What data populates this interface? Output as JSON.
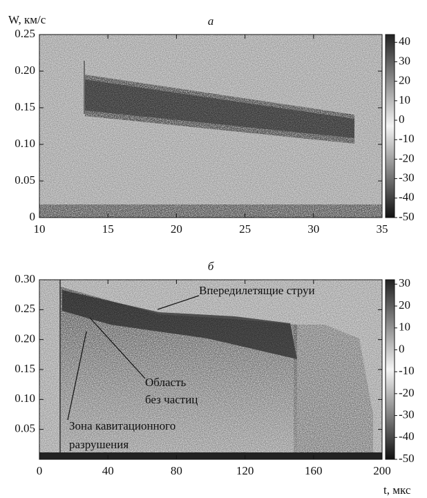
{
  "chart_data": [
    {
      "type": "spectrogram",
      "title": "а",
      "ylabel": "W, км/с",
      "xlim": [
        10,
        35
      ],
      "xticks": [
        10,
        15,
        20,
        25,
        30,
        35
      ],
      "ylim": [
        0,
        0.25
      ],
      "yticks": [
        0,
        0.05,
        {
          "value": 0.1,
          "label": "0.10"
        },
        0.15,
        {
          "value": 0.2,
          "label": "0.20"
        },
        0.25
      ],
      "colorbar": {
        "lim": [
          -50,
          44
        ],
        "ticks": [
          -50,
          -40,
          -30,
          -20,
          -10,
          0,
          10,
          20,
          30,
          40
        ]
      }
    },
    {
      "type": "spectrogram",
      "title": "б",
      "xlabel": "t, мкс",
      "xlim": [
        0,
        200
      ],
      "xticks": [
        0,
        40,
        80,
        120,
        160,
        200
      ],
      "ylim": [
        0,
        0.3
      ],
      "yticks": [
        {
          "value": 0.05,
          "label": "0.05"
        },
        {
          "value": 0.1,
          "label": "0.10"
        },
        0.15,
        {
          "value": 0.2,
          "label": "0.20"
        },
        0.25,
        {
          "value": 0.3,
          "label": "0.30"
        }
      ],
      "colorbar": {
        "lim": [
          -50,
          32
        ],
        "ticks": [
          -50,
          -40,
          -30,
          -20,
          -10,
          0,
          10,
          20,
          30
        ]
      },
      "annotations": [
        "Впередилетящие струи",
        "Область",
        "без частиц",
        "Зона кавитационного",
        "разрушения"
      ]
    }
  ]
}
